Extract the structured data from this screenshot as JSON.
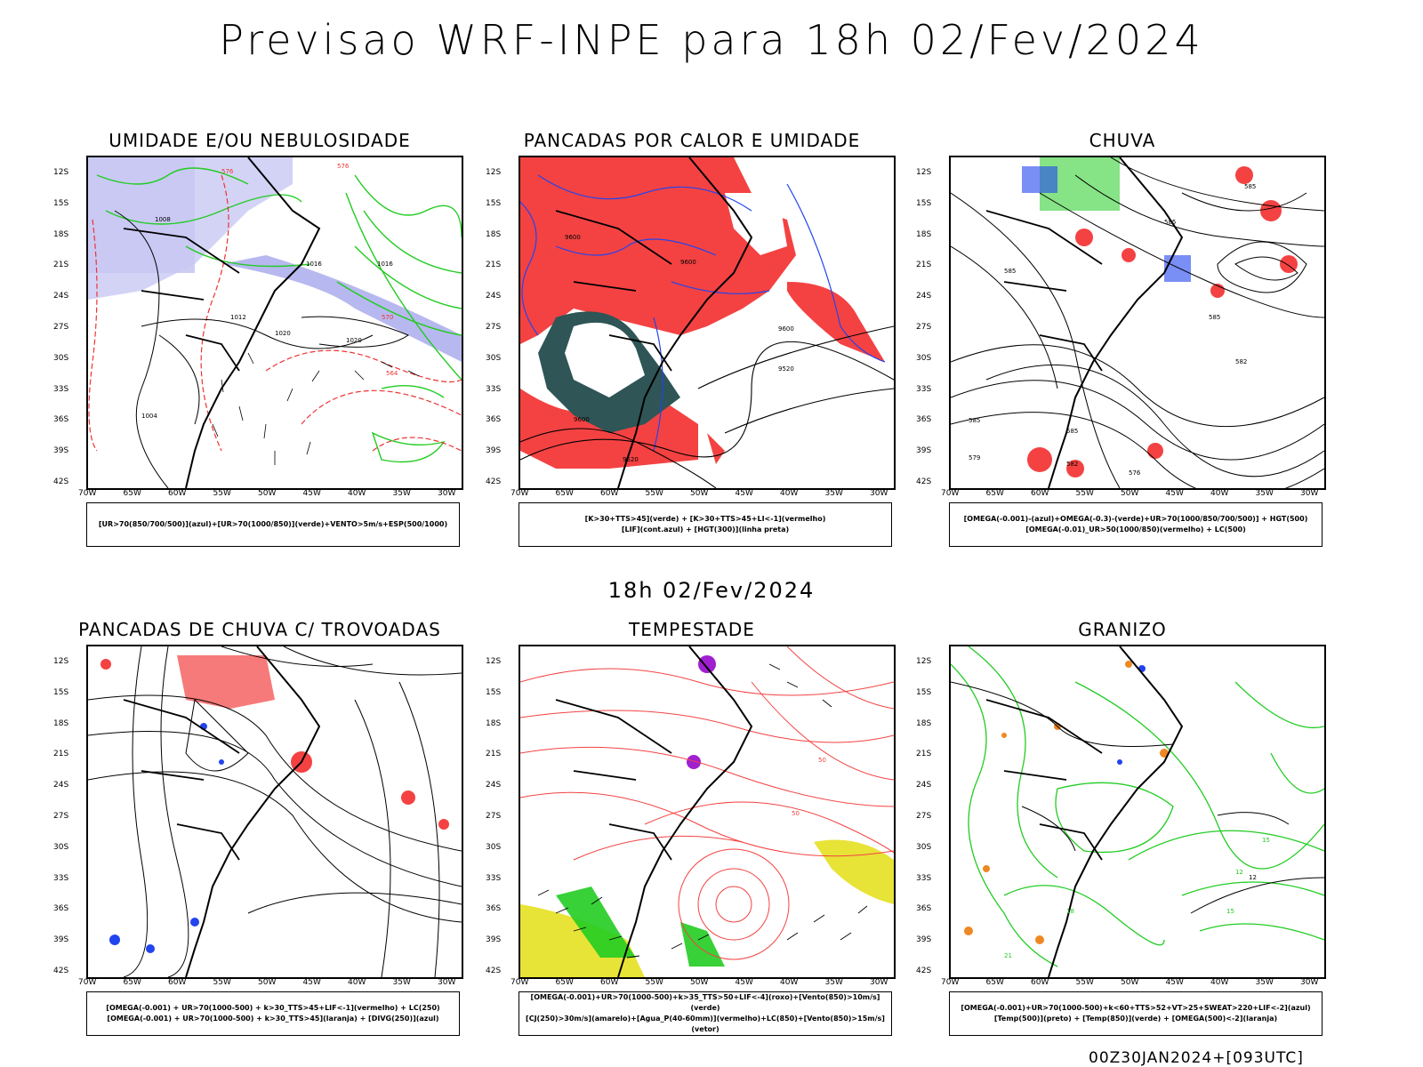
{
  "title": "Previsao WRF-INPE  para 18h 02/Fev/2024",
  "mid_time": "18h 02/Fev/2024",
  "footer": "00Z30JAN2024+[093UTC]",
  "latitudes": [
    "12S",
    "15S",
    "18S",
    "21S",
    "24S",
    "27S",
    "30S",
    "33S",
    "36S",
    "39S",
    "42S"
  ],
  "longitudes": [
    "70W",
    "65W",
    "60W",
    "55W",
    "50W",
    "45W",
    "40W",
    "35W",
    "30W"
  ],
  "panels": [
    {
      "title": "UMIDADE E/OU NEBULOSIDADE",
      "legend": [
        "[UR>70(850/700/500)](azul)+[UR>70(1000/850)](verde)+VENTO>5m/s+ESP(500/1000)"
      ]
    },
    {
      "title": "PANCADAS POR CALOR E UMIDADE",
      "legend": [
        "[K>30+TTS>45](verde) + [K>30+TTS>45+LI<-1](vermelho)",
        "[LIF](cont.azul) + [HGT(300)](linha preta)"
      ]
    },
    {
      "title": "CHUVA",
      "legend": [
        "[OMEGA(-0.001)-(azul)+OMEGA(-0.3)-(verde)+UR>70(1000/850/700/500)] + HGT(500)",
        "[OMEGA(-0.01)_UR>50(1000/850)(vermelho) + LC(500)"
      ]
    },
    {
      "title": "PANCADAS DE CHUVA C/ TROVOADAS",
      "legend": [
        "[OMEGA(-0.001) + UR>70(1000-500) + k>30_TTS>45+LIF<-1](vermelho) + LC(250)",
        "[OMEGA(-0.001) + UR>70(1000-500) + k>30_TTS>45](laranja) + [DIVG(250)](azul)"
      ]
    },
    {
      "title": "TEMPESTADE",
      "legend": [
        "[OMEGA(-0.001)+UR>70(1000-500)+k>35_TTS>50+LIF<-4](roxo)+[Vento(850)>10m/s](verde)",
        "[CJ(250)>30m/s](amarelo)+[Agua_P(40-60mm)](vermelho)+LC(850)+[Vento(850)>15m/s](vetor)"
      ]
    },
    {
      "title": "GRANIZO",
      "legend": [
        "[OMEGA(-0.001)+UR>70(1000-500)+k<60+TTS>52+VT>25+SWEAT>220+LIF<-2](azul)",
        "[Temp(500)](preto) + [Temp(850)](verde) + [OMEGA(500)<-2](laranja)"
      ]
    }
  ],
  "contour_labels": {
    "p1": [
      "1008",
      "1016",
      "1012",
      "1020",
      "1004",
      "576",
      "564"
    ],
    "p2": [
      "9600",
      "9520"
    ],
    "p3": [
      "585",
      "582",
      "579",
      "576"
    ],
    "p5": [
      "50"
    ],
    "p6": [
      "12",
      "15",
      "18",
      "21"
    ]
  }
}
